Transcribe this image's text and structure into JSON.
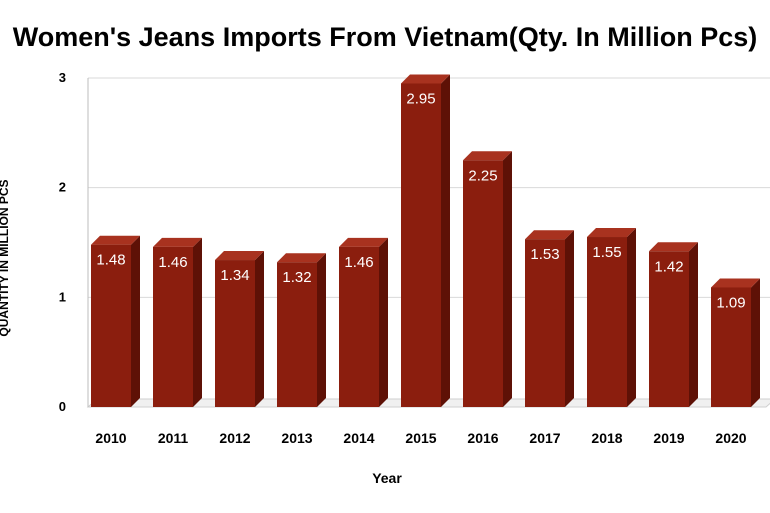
{
  "chart_data": {
    "type": "bar",
    "title": "Women's Jeans Imports From Vietnam(Qty. In Million Pcs)",
    "xlabel": "Year",
    "ylabel": "QUANTITY IN MILLION PCS",
    "categories": [
      "2010",
      "2011",
      "2012",
      "2013",
      "2014",
      "2015",
      "2016",
      "2017",
      "2018",
      "2019",
      "2020"
    ],
    "values": [
      1.48,
      1.46,
      1.34,
      1.32,
      1.46,
      2.95,
      2.25,
      1.53,
      1.55,
      1.42,
      1.09
    ],
    "data_labels": [
      "1.48",
      "1.46",
      "1.34",
      "1.32",
      "1.46",
      "2.95",
      "2.25",
      "1.53",
      "1.55",
      "1.42",
      "1.09"
    ],
    "yticks": [
      "0",
      "1",
      "2",
      "3"
    ],
    "ylim": [
      0,
      3
    ],
    "grid": true,
    "legend": "none",
    "colors": {
      "bar": "#8b1e0e",
      "bar_side": "#5e1106",
      "bar_top": "#a8321f",
      "grid": "#d9d9d9"
    }
  }
}
